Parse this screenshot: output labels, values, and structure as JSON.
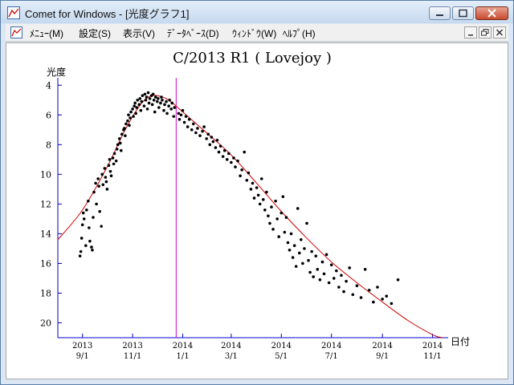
{
  "window": {
    "title": "Comet for Windows - [光度グラフ1]"
  },
  "menu": {
    "items": [
      "ﾒﾆｭｰ(M)",
      "設定(S)",
      "表示(V)",
      "ﾃﾞｰﾀﾍﾞｰｽ(D)",
      "ｳｨﾝﾄﾞｳ(W)",
      "ﾍﾙﾌﾟ(H)"
    ]
  },
  "colors": {
    "axis": "#0000cc",
    "curve": "#cc0000",
    "marker_line": "#cc00cc",
    "points": "#000000"
  },
  "chart_data": {
    "type": "scatter",
    "title": "C/2013 R1 ( Lovejoy )",
    "ylabel": "光度",
    "xlabel": "日付",
    "y_inverted": true,
    "ylim": [
      3.5,
      21
    ],
    "yticks": [
      4,
      6,
      8,
      10,
      12,
      14,
      16,
      18,
      20
    ],
    "xlim": [
      "2013-08-02",
      "2014-11-20"
    ],
    "xticks": [
      {
        "date": "2013-09-01",
        "year": "2013",
        "md": "9/1"
      },
      {
        "date": "2013-11-01",
        "year": "2013",
        "md": "11/1"
      },
      {
        "date": "2014-01-01",
        "year": "2014",
        "md": "1/1"
      },
      {
        "date": "2014-03-01",
        "year": "2014",
        "md": "3/1"
      },
      {
        "date": "2014-05-01",
        "year": "2014",
        "md": "5/1"
      },
      {
        "date": "2014-07-01",
        "year": "2014",
        "md": "7/1"
      },
      {
        "date": "2014-09-01",
        "year": "2014",
        "md": "9/1"
      },
      {
        "date": "2014-11-01",
        "year": "2014",
        "md": "11/1"
      }
    ],
    "marker_date": "2013-12-24",
    "curve": {
      "name": "fit",
      "points": [
        [
          "2013-08-02",
          14.4
        ],
        [
          "2013-09-01",
          12.4
        ],
        [
          "2013-10-01",
          9.5
        ],
        [
          "2013-10-22",
          7.1
        ],
        [
          "2013-11-08",
          5.5
        ],
        [
          "2013-11-20",
          4.8
        ],
        [
          "2013-12-01",
          4.7
        ],
        [
          "2013-12-15",
          5.0
        ],
        [
          "2014-01-01",
          5.8
        ],
        [
          "2014-02-01",
          7.3
        ],
        [
          "2014-03-01",
          8.7
        ],
        [
          "2014-04-01",
          10.6
        ],
        [
          "2014-05-01",
          12.5
        ],
        [
          "2014-06-01",
          14.3
        ],
        [
          "2014-07-01",
          15.9
        ],
        [
          "2014-08-01",
          17.3
        ],
        [
          "2014-09-01",
          18.6
        ],
        [
          "2014-10-01",
          19.8
        ],
        [
          "2014-11-01",
          20.8
        ],
        [
          "2014-11-13",
          21.0
        ]
      ]
    },
    "points": [
      [
        "2013-08-29",
        15.5
      ],
      [
        "2013-08-30",
        15.2
      ],
      [
        "2013-08-31",
        14.3
      ],
      [
        "2013-09-01",
        13.4
      ],
      [
        "2013-09-02",
        12.6
      ],
      [
        "2013-09-03",
        13.0
      ],
      [
        "2013-09-05",
        14.8
      ],
      [
        "2013-09-06",
        12.4
      ],
      [
        "2013-09-08",
        11.8
      ],
      [
        "2013-09-09",
        13.6
      ],
      [
        "2013-09-10",
        14.5
      ],
      [
        "2013-09-12",
        14.9
      ],
      [
        "2013-09-13",
        15.1
      ],
      [
        "2013-09-14",
        12.9
      ],
      [
        "2013-09-15",
        11.2
      ],
      [
        "2013-09-17",
        10.6
      ],
      [
        "2013-09-18",
        12.0
      ],
      [
        "2013-09-20",
        10.3
      ],
      [
        "2013-09-21",
        10.8
      ],
      [
        "2013-09-22",
        12.5
      ],
      [
        "2013-09-24",
        13.5
      ],
      [
        "2013-09-25",
        10.0
      ],
      [
        "2013-09-26",
        10.7
      ],
      [
        "2013-09-28",
        9.6
      ],
      [
        "2013-09-29",
        10.2
      ],
      [
        "2013-09-30",
        10.5
      ],
      [
        "2013-10-01",
        11.0
      ],
      [
        "2013-10-03",
        9.4
      ],
      [
        "2013-10-04",
        9.0
      ],
      [
        "2013-10-05",
        9.8
      ],
      [
        "2013-10-06",
        10.1
      ],
      [
        "2013-10-08",
        8.9
      ],
      [
        "2013-10-09",
        9.3
      ],
      [
        "2013-10-10",
        8.6
      ],
      [
        "2013-10-12",
        9.1
      ],
      [
        "2013-10-13",
        8.3
      ],
      [
        "2013-10-14",
        8.0
      ],
      [
        "2013-10-16",
        7.6
      ],
      [
        "2013-10-17",
        7.9
      ],
      [
        "2013-10-18",
        8.4
      ],
      [
        "2013-10-19",
        7.3
      ],
      [
        "2013-10-21",
        7.0
      ],
      [
        "2013-10-22",
        6.9
      ],
      [
        "2013-10-23",
        7.4
      ],
      [
        "2013-10-24",
        6.6
      ],
      [
        "2013-10-26",
        6.4
      ],
      [
        "2013-10-27",
        6.0
      ],
      [
        "2013-10-28",
        6.7
      ],
      [
        "2013-10-29",
        6.2
      ],
      [
        "2013-10-30",
        5.8
      ],
      [
        "2013-11-01",
        5.6
      ],
      [
        "2013-11-02",
        6.1
      ],
      [
        "2013-11-03",
        5.4
      ],
      [
        "2013-11-04",
        5.2
      ],
      [
        "2013-11-05",
        5.9
      ],
      [
        "2013-11-06",
        5.5
      ],
      [
        "2013-11-07",
        5.0
      ],
      [
        "2013-11-09",
        5.3
      ],
      [
        "2013-11-10",
        4.9
      ],
      [
        "2013-11-11",
        5.7
      ],
      [
        "2013-11-12",
        5.1
      ],
      [
        "2013-11-13",
        4.7
      ],
      [
        "2013-11-15",
        5.4
      ],
      [
        "2013-11-16",
        4.6
      ],
      [
        "2013-11-17",
        5.0
      ],
      [
        "2013-11-18",
        4.8
      ],
      [
        "2013-11-19",
        5.6
      ],
      [
        "2013-11-20",
        4.5
      ],
      [
        "2013-11-21",
        5.2
      ],
      [
        "2013-11-22",
        4.9
      ],
      [
        "2013-11-24",
        4.7
      ],
      [
        "2013-11-25",
        5.3
      ],
      [
        "2013-11-26",
        4.6
      ],
      [
        "2013-11-27",
        5.0
      ],
      [
        "2013-11-28",
        5.8
      ],
      [
        "2013-11-29",
        4.8
      ],
      [
        "2013-12-01",
        5.1
      ],
      [
        "2013-12-02",
        4.9
      ],
      [
        "2013-12-03",
        5.5
      ],
      [
        "2013-12-05",
        5.2
      ],
      [
        "2013-12-06",
        4.8
      ],
      [
        "2013-12-07",
        5.0
      ],
      [
        "2013-12-09",
        5.7
      ],
      [
        "2013-12-10",
        5.3
      ],
      [
        "2013-12-12",
        5.1
      ],
      [
        "2013-12-13",
        5.9
      ],
      [
        "2013-12-15",
        5.4
      ],
      [
        "2013-12-16",
        5.0
      ],
      [
        "2013-12-18",
        5.6
      ],
      [
        "2013-12-19",
        5.2
      ],
      [
        "2013-12-21",
        6.1
      ],
      [
        "2013-12-22",
        5.5
      ],
      [
        "2013-12-27",
        5.9
      ],
      [
        "2013-12-28",
        6.3
      ],
      [
        "2013-12-30",
        6.0
      ],
      [
        "2014-01-01",
        5.7
      ],
      [
        "2014-01-03",
        6.5
      ],
      [
        "2014-01-05",
        6.1
      ],
      [
        "2014-01-07",
        6.8
      ],
      [
        "2014-01-09",
        6.3
      ],
      [
        "2014-01-12",
        7.0
      ],
      [
        "2014-01-14",
        6.6
      ],
      [
        "2014-01-17",
        7.2
      ],
      [
        "2014-01-19",
        6.9
      ],
      [
        "2014-01-22",
        7.4
      ],
      [
        "2014-01-25",
        7.1
      ],
      [
        "2014-01-27",
        6.8
      ],
      [
        "2014-01-30",
        7.6
      ],
      [
        "2014-02-01",
        7.3
      ],
      [
        "2014-02-03",
        8.0
      ],
      [
        "2014-02-05",
        7.5
      ],
      [
        "2014-02-07",
        7.8
      ],
      [
        "2014-02-10",
        8.2
      ],
      [
        "2014-02-12",
        7.7
      ],
      [
        "2014-02-14",
        8.5
      ],
      [
        "2014-02-16",
        8.1
      ],
      [
        "2014-02-19",
        8.8
      ],
      [
        "2014-02-21",
        8.4
      ],
      [
        "2014-02-24",
        9.0
      ],
      [
        "2014-02-26",
        8.6
      ],
      [
        "2014-03-01",
        9.2
      ],
      [
        "2014-03-04",
        8.9
      ],
      [
        "2014-03-06",
        9.5
      ],
      [
        "2014-03-09",
        9.1
      ],
      [
        "2014-03-12",
        10.1
      ],
      [
        "2014-03-14",
        9.7
      ],
      [
        "2014-03-17",
        8.5
      ],
      [
        "2014-03-20",
        10.4
      ],
      [
        "2014-03-22",
        9.9
      ],
      [
        "2014-03-25",
        11.0
      ],
      [
        "2014-03-27",
        10.6
      ],
      [
        "2014-03-29",
        11.6
      ],
      [
        "2014-04-01",
        10.9
      ],
      [
        "2014-04-03",
        11.4
      ],
      [
        "2014-04-05",
        12.0
      ],
      [
        "2014-04-07",
        10.3
      ],
      [
        "2014-04-09",
        11.7
      ],
      [
        "2014-04-11",
        12.4
      ],
      [
        "2014-04-13",
        11.2
      ],
      [
        "2014-04-15",
        12.8
      ],
      [
        "2014-04-17",
        13.3
      ],
      [
        "2014-04-19",
        12.2
      ],
      [
        "2014-04-21",
        13.7
      ],
      [
        "2014-04-24",
        11.8
      ],
      [
        "2014-04-26",
        13.0
      ],
      [
        "2014-04-28",
        14.2
      ],
      [
        "2014-05-01",
        12.6
      ],
      [
        "2014-05-03",
        11.5
      ],
      [
        "2014-05-05",
        13.9
      ],
      [
        "2014-05-07",
        12.9
      ],
      [
        "2014-05-09",
        14.6
      ],
      [
        "2014-05-11",
        15.1
      ],
      [
        "2014-05-13",
        14.0
      ],
      [
        "2014-05-15",
        15.6
      ],
      [
        "2014-05-17",
        14.8
      ],
      [
        "2014-05-19",
        16.2
      ],
      [
        "2014-05-21",
        12.3
      ],
      [
        "2014-05-23",
        15.3
      ],
      [
        "2014-05-25",
        14.4
      ],
      [
        "2014-05-27",
        16.0
      ],
      [
        "2014-05-29",
        15.0
      ],
      [
        "2014-06-01",
        13.3
      ],
      [
        "2014-06-03",
        15.8
      ],
      [
        "2014-06-05",
        16.6
      ],
      [
        "2014-06-07",
        15.2
      ],
      [
        "2014-06-09",
        16.9
      ],
      [
        "2014-06-12",
        15.5
      ],
      [
        "2014-06-14",
        16.4
      ],
      [
        "2014-06-17",
        17.1
      ],
      [
        "2014-06-20",
        15.9
      ],
      [
        "2014-06-22",
        16.7
      ],
      [
        "2014-06-25",
        15.4
      ],
      [
        "2014-06-28",
        17.3
      ],
      [
        "2014-07-01",
        16.1
      ],
      [
        "2014-07-04",
        17.0
      ],
      [
        "2014-07-07",
        16.5
      ],
      [
        "2014-07-10",
        17.6
      ],
      [
        "2014-07-13",
        16.8
      ],
      [
        "2014-07-16",
        17.9
      ],
      [
        "2014-07-19",
        17.2
      ],
      [
        "2014-07-23",
        16.3
      ],
      [
        "2014-07-27",
        18.1
      ],
      [
        "2014-08-01",
        17.5
      ],
      [
        "2014-08-06",
        18.3
      ],
      [
        "2014-08-11",
        16.4
      ],
      [
        "2014-08-16",
        17.8
      ],
      [
        "2014-08-21",
        18.6
      ],
      [
        "2014-08-26",
        17.6
      ],
      [
        "2014-09-01",
        18.4
      ],
      [
        "2014-09-06",
        18.2
      ],
      [
        "2014-09-12",
        18.7
      ],
      [
        "2014-09-20",
        17.1
      ]
    ]
  }
}
